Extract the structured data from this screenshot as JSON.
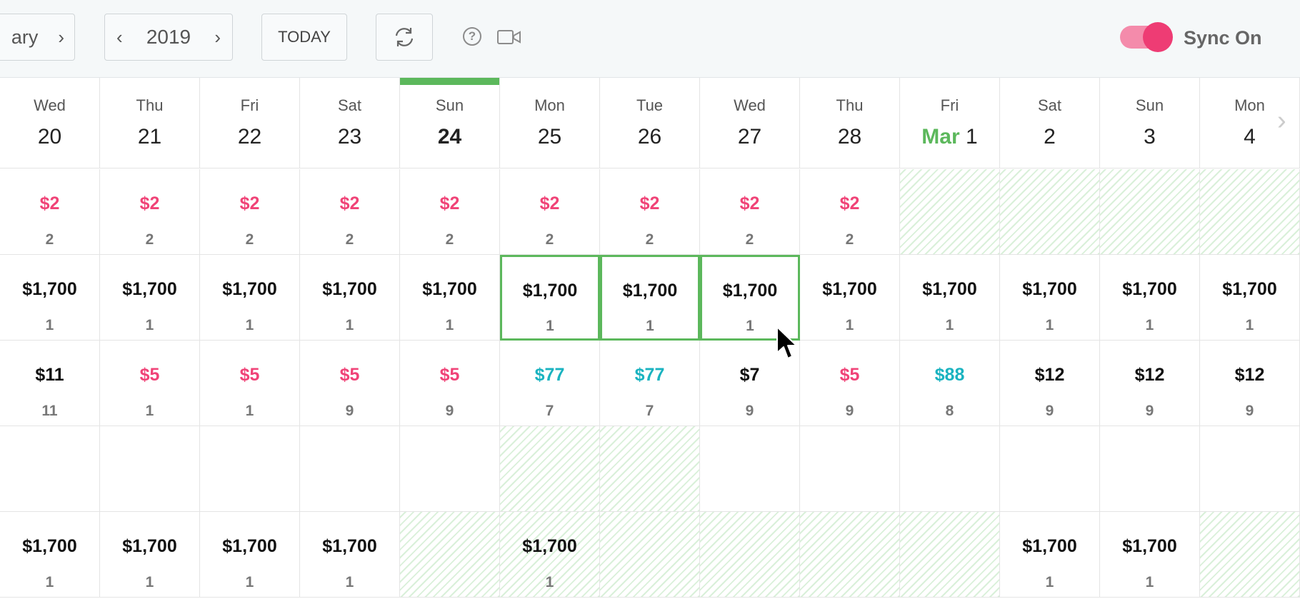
{
  "toolbar": {
    "month_label": "ary",
    "year": "2019",
    "today_label": "TODAY",
    "sync_label": "Sync On",
    "sync_on": true,
    "accent": "#f04377",
    "icons": [
      "chevron-right-icon",
      "chevron-left-icon",
      "refresh-icon",
      "help-icon",
      "video-icon"
    ]
  },
  "days": [
    {
      "weekday": "Wed",
      "month": "",
      "day": "20",
      "today": false
    },
    {
      "weekday": "Thu",
      "month": "",
      "day": "21",
      "today": false
    },
    {
      "weekday": "Fri",
      "month": "",
      "day": "22",
      "today": false
    },
    {
      "weekday": "Sat",
      "month": "",
      "day": "23",
      "today": false
    },
    {
      "weekday": "Sun",
      "month": "",
      "day": "24",
      "today": true
    },
    {
      "weekday": "Mon",
      "month": "",
      "day": "25",
      "today": false
    },
    {
      "weekday": "Tue",
      "month": "",
      "day": "26",
      "today": false
    },
    {
      "weekday": "Wed",
      "month": "",
      "day": "27",
      "today": false
    },
    {
      "weekday": "Thu",
      "month": "",
      "day": "28",
      "today": false
    },
    {
      "weekday": "Fri",
      "month": "Mar",
      "day": "1",
      "today": false
    },
    {
      "weekday": "Sat",
      "month": "",
      "day": "2",
      "today": false
    },
    {
      "weekday": "Sun",
      "month": "",
      "day": "3",
      "today": false
    },
    {
      "weekday": "Mon",
      "month": "",
      "day": "4",
      "today": false
    }
  ],
  "rows": [
    {
      "cells": [
        {
          "price": "$2",
          "count": "2",
          "color": "pink"
        },
        {
          "price": "$2",
          "count": "2",
          "color": "pink"
        },
        {
          "price": "$2",
          "count": "2",
          "color": "pink"
        },
        {
          "price": "$2",
          "count": "2",
          "color": "pink"
        },
        {
          "price": "$2",
          "count": "2",
          "color": "pink"
        },
        {
          "price": "$2",
          "count": "2",
          "color": "pink"
        },
        {
          "price": "$2",
          "count": "2",
          "color": "pink"
        },
        {
          "price": "$2",
          "count": "2",
          "color": "pink"
        },
        {
          "price": "$2",
          "count": "2",
          "color": "pink"
        },
        {
          "price": "",
          "count": "",
          "hatch": true
        },
        {
          "price": "",
          "count": "",
          "hatch": true
        },
        {
          "price": "",
          "count": "",
          "hatch": true
        },
        {
          "price": "",
          "count": "",
          "hatch": true
        }
      ]
    },
    {
      "cells": [
        {
          "price": "$1,700",
          "count": "1"
        },
        {
          "price": "$1,700",
          "count": "1"
        },
        {
          "price": "$1,700",
          "count": "1"
        },
        {
          "price": "$1,700",
          "count": "1"
        },
        {
          "price": "$1,700",
          "count": "1"
        },
        {
          "price": "$1,700",
          "count": "1",
          "selected": true
        },
        {
          "price": "$1,700",
          "count": "1",
          "selected": true
        },
        {
          "price": "$1,700",
          "count": "1",
          "selected": true
        },
        {
          "price": "$1,700",
          "count": "1"
        },
        {
          "price": "$1,700",
          "count": "1"
        },
        {
          "price": "$1,700",
          "count": "1"
        },
        {
          "price": "$1,700",
          "count": "1"
        },
        {
          "price": "$1,700",
          "count": "1"
        }
      ]
    },
    {
      "cells": [
        {
          "price": "$11",
          "count": "11"
        },
        {
          "price": "$5",
          "count": "1",
          "color": "pink"
        },
        {
          "price": "$5",
          "count": "1",
          "color": "pink"
        },
        {
          "price": "$5",
          "count": "9",
          "color": "pink"
        },
        {
          "price": "$5",
          "count": "9",
          "color": "pink"
        },
        {
          "price": "$77",
          "count": "7",
          "color": "teal"
        },
        {
          "price": "$77",
          "count": "7",
          "color": "teal"
        },
        {
          "price": "$7",
          "count": "9"
        },
        {
          "price": "$5",
          "count": "9",
          "color": "pink"
        },
        {
          "price": "$88",
          "count": "8",
          "color": "teal"
        },
        {
          "price": "$12",
          "count": "9"
        },
        {
          "price": "$12",
          "count": "9"
        },
        {
          "price": "$12",
          "count": "9"
        }
      ]
    },
    {
      "cells": [
        {
          "price": "",
          "count": ""
        },
        {
          "price": "",
          "count": ""
        },
        {
          "price": "",
          "count": ""
        },
        {
          "price": "",
          "count": ""
        },
        {
          "price": "",
          "count": ""
        },
        {
          "price": "",
          "count": "",
          "hatch": true
        },
        {
          "price": "",
          "count": "",
          "hatch": true
        },
        {
          "price": "",
          "count": ""
        },
        {
          "price": "",
          "count": ""
        },
        {
          "price": "",
          "count": ""
        },
        {
          "price": "",
          "count": ""
        },
        {
          "price": "",
          "count": ""
        },
        {
          "price": "",
          "count": ""
        }
      ]
    },
    {
      "cells": [
        {
          "price": "$1,700",
          "count": "1"
        },
        {
          "price": "$1,700",
          "count": "1"
        },
        {
          "price": "$1,700",
          "count": "1"
        },
        {
          "price": "$1,700",
          "count": "1"
        },
        {
          "price": "",
          "count": "",
          "hatch": true
        },
        {
          "price": "$1,700",
          "count": "1",
          "hatch": true
        },
        {
          "price": "",
          "count": "",
          "hatch": true
        },
        {
          "price": "",
          "count": "",
          "hatch": true
        },
        {
          "price": "",
          "count": "",
          "hatch": true
        },
        {
          "price": "",
          "count": "",
          "hatch": true
        },
        {
          "price": "$1,700",
          "count": "1"
        },
        {
          "price": "$1,700",
          "count": "1"
        },
        {
          "price": "",
          "count": "",
          "hatch": true
        }
      ]
    }
  ],
  "colors": {
    "pink": "#f04377",
    "teal": "#1ab3c0",
    "green": "#5cb85c"
  }
}
